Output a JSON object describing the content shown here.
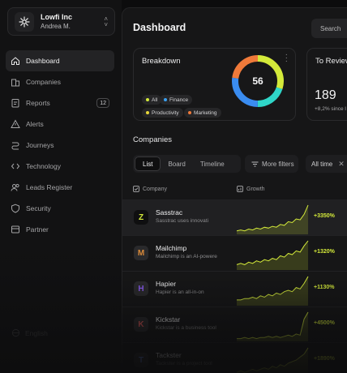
{
  "workspace": {
    "name": "Lowfi Inc",
    "user": "Andrea M."
  },
  "sidebar": {
    "items": [
      {
        "label": "Dashboard",
        "icon": "home-icon",
        "active": true
      },
      {
        "label": "Companies",
        "icon": "building-icon"
      },
      {
        "label": "Reports",
        "icon": "reports-icon",
        "badge": "12"
      },
      {
        "label": "Alerts",
        "icon": "alert-icon"
      },
      {
        "label": "Journeys",
        "icon": "route-icon"
      },
      {
        "label": "Technology",
        "icon": "code-icon"
      },
      {
        "label": "Leads Register",
        "icon": "users-icon"
      },
      {
        "label": "Security",
        "icon": "shield-icon"
      },
      {
        "label": "Partner",
        "icon": "partner-icon"
      }
    ],
    "language": "English"
  },
  "header": {
    "title": "Dashboard",
    "search_label": "Search"
  },
  "breakdown": {
    "title": "Breakdown",
    "total": "56",
    "tags": [
      {
        "label": "All",
        "color": "#d4ea3a"
      },
      {
        "label": "Finance",
        "color": "#3aa0f0"
      },
      {
        "label": "Productivity",
        "color": "#e8d83a"
      },
      {
        "label": "Marketing",
        "color": "#f07a3a"
      }
    ],
    "segments": [
      {
        "color": "#d4ea3a",
        "fraction": 0.3
      },
      {
        "color": "#2fd6c8",
        "fraction": 0.2
      },
      {
        "color": "#3a8cf0",
        "fraction": 0.27
      },
      {
        "color": "#f07a3a",
        "fraction": 0.23
      }
    ]
  },
  "review": {
    "title": "To Review",
    "value": "189",
    "sub": "+8,2% since l"
  },
  "companies": {
    "title": "Companies",
    "tabs": [
      "List",
      "Board",
      "Timeline"
    ],
    "filter_label": "More filters",
    "time_label": "All time",
    "columns": {
      "company": "Company",
      "growth": "Growth"
    },
    "rows": [
      {
        "name": "Sasstrac",
        "desc": "Sasstrac uses innovati",
        "growth": "+3350%",
        "logo": "Z",
        "logo_bg": "#0f0f10",
        "logo_color": "#d4ea3a",
        "trend": [
          2,
          3,
          2,
          4,
          3,
          5,
          4,
          6,
          5,
          7,
          6,
          9,
          8,
          12,
          11,
          15,
          14,
          20,
          30
        ]
      },
      {
        "name": "Mailchimp",
        "desc": "Mailchimp is an AI-powere",
        "growth": "+1320%",
        "logo": "M",
        "logo_bg": "#2a2a2c",
        "logo_color": "#d98a3a",
        "trend": [
          3,
          4,
          3,
          5,
          4,
          6,
          5,
          7,
          6,
          8,
          7,
          10,
          9,
          12,
          11,
          14,
          13,
          18,
          22
        ]
      },
      {
        "name": "Hapier",
        "desc": "Hapier is an all-in-on",
        "growth": "+1130%",
        "logo": "H",
        "logo_bg": "#2a2a2c",
        "logo_color": "#8a5cf0",
        "trend": [
          3,
          3,
          4,
          4,
          5,
          4,
          6,
          5,
          7,
          6,
          8,
          7,
          9,
          10,
          9,
          12,
          11,
          15,
          20
        ]
      },
      {
        "name": "Kickstar",
        "desc": "Kickstar is a business tool",
        "growth": "+4500%",
        "logo": "K",
        "logo_bg": "#2a2a2c",
        "logo_color": "#e05a5a",
        "trend": [
          1,
          1,
          2,
          1,
          2,
          1,
          2,
          2,
          3,
          2,
          3,
          2,
          3,
          4,
          3,
          5,
          4,
          18,
          24
        ]
      },
      {
        "name": "Tackster",
        "desc": "Tackster is a project tool",
        "growth": "+1890%",
        "logo": "T",
        "logo_bg": "#2a2a2c",
        "logo_color": "#6a8cf0",
        "trend": [
          2,
          3,
          2,
          3,
          4,
          3,
          4,
          5,
          4,
          6,
          5,
          7,
          6,
          8,
          9,
          10,
          12,
          14,
          18
        ]
      }
    ]
  }
}
